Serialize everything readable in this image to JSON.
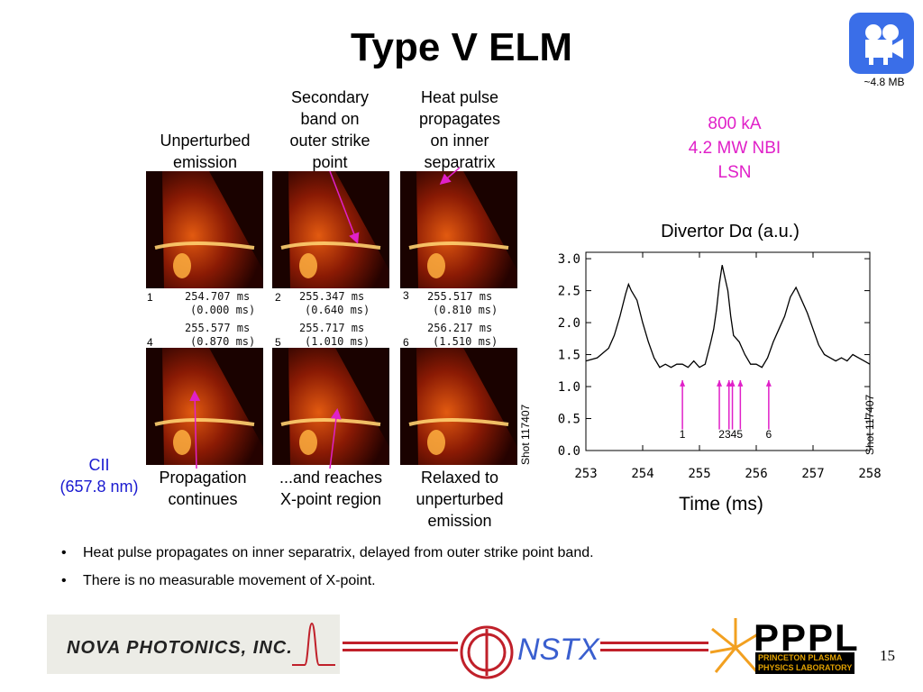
{
  "slide": {
    "title": "Type V ELM",
    "video_size": "~4.8 MB",
    "page_number": "15"
  },
  "params": {
    "line1": "800 kA",
    "line2": "4.2 MW NBI",
    "line3": "LSN"
  },
  "captions": {
    "unperturbed": [
      "Unperturbed",
      "emission"
    ],
    "secondary": [
      "Secondary",
      "band on",
      "outer strike",
      "point"
    ],
    "heatpulse": [
      "Heat pulse",
      "propagates",
      "on inner",
      "separatrix"
    ],
    "propagation": [
      "Propagation",
      "continues"
    ],
    "reaches": [
      "...and reaches",
      "X-point region"
    ],
    "relaxed": [
      "Relaxed to",
      "unperturbed",
      "emission"
    ],
    "cii": [
      "CII",
      "(657.8 nm)"
    ]
  },
  "frames": [
    {
      "num": "1",
      "t1": "254.707 ms",
      "t2": "(0.000 ms)"
    },
    {
      "num": "2",
      "t1": "255.347 ms",
      "t2": "(0.640 ms)"
    },
    {
      "num": "3",
      "t1": "255.517 ms",
      "t2": "(0.810 ms)"
    },
    {
      "num": "4",
      "t1": "255.577 ms",
      "t2": "(0.870 ms)"
    },
    {
      "num": "5",
      "t1": "255.717 ms",
      "t2": "(1.010 ms)"
    },
    {
      "num": "6",
      "t1": "256.217 ms",
      "t2": "(1.510 ms)"
    }
  ],
  "shot_label": "Shot 117407",
  "bullets": [
    "Heat pulse propagates on inner separatrix, delayed from outer strike point band.",
    "There is no measurable movement of X-point."
  ],
  "logos": {
    "nova": "NOVA PHOTONICS, INC.",
    "nstx": "NSTX",
    "pppl": "PPPL",
    "pppl_sub": [
      "PRINCETON PLASMA",
      "PHYSICS LABORATORY"
    ]
  },
  "colors": {
    "accent_magenta": "#e020c8",
    "cii_blue": "#1a1ad0",
    "footer_red": "#c0202a"
  },
  "chart_data": {
    "type": "line",
    "title": "Divertor Dα (a.u.)",
    "xlabel": "Time (ms)",
    "ylabel": "",
    "xlim": [
      253,
      258
    ],
    "ylim": [
      0,
      3.1
    ],
    "xticks": [
      "253",
      "254",
      "255",
      "256",
      "257",
      "258"
    ],
    "yticks": [
      "0.0",
      "0.5",
      "1.0",
      "1.5",
      "2.0",
      "2.5",
      "3.0"
    ],
    "series": [
      {
        "x": [
          253.0,
          253.2,
          253.4,
          253.5,
          253.6,
          253.7,
          253.75,
          253.8,
          253.9,
          254.0,
          254.1,
          254.2,
          254.3,
          254.4,
          254.5,
          254.6,
          254.7,
          254.8,
          254.9,
          255.0,
          255.1,
          255.2,
          255.25,
          255.3,
          255.35,
          255.4,
          255.45,
          255.5,
          255.55,
          255.6,
          255.7,
          255.8,
          255.9,
          256.0,
          256.1,
          256.2,
          256.3,
          256.4,
          256.5,
          256.6,
          256.7,
          256.8,
          256.9,
          257.0,
          257.1,
          257.2,
          257.3,
          257.4,
          257.5,
          257.6,
          257.7,
          257.8,
          257.9,
          258.0
        ],
        "y": [
          1.4,
          1.45,
          1.6,
          1.8,
          2.1,
          2.45,
          2.6,
          2.5,
          2.35,
          2.0,
          1.7,
          1.45,
          1.3,
          1.35,
          1.3,
          1.35,
          1.35,
          1.3,
          1.4,
          1.3,
          1.35,
          1.7,
          1.9,
          2.2,
          2.6,
          2.9,
          2.7,
          2.5,
          2.1,
          1.8,
          1.7,
          1.5,
          1.35,
          1.35,
          1.3,
          1.45,
          1.7,
          1.9,
          2.1,
          2.4,
          2.55,
          2.35,
          2.15,
          1.9,
          1.65,
          1.5,
          1.45,
          1.4,
          1.45,
          1.4,
          1.5,
          1.45,
          1.4,
          1.35
        ]
      }
    ],
    "markers": [
      {
        "label": "1",
        "x": 254.7
      },
      {
        "label": "2",
        "x": 255.35
      },
      {
        "label": "3",
        "x": 255.52
      },
      {
        "label": "4",
        "x": 255.58
      },
      {
        "label": "5",
        "x": 255.72
      },
      {
        "label": "6",
        "x": 256.22
      }
    ],
    "marker_label_groups": [
      {
        "text": "1",
        "x": 254.7
      },
      {
        "text": "2345",
        "x": 255.55
      },
      {
        "text": "6",
        "x": 256.22
      }
    ]
  }
}
